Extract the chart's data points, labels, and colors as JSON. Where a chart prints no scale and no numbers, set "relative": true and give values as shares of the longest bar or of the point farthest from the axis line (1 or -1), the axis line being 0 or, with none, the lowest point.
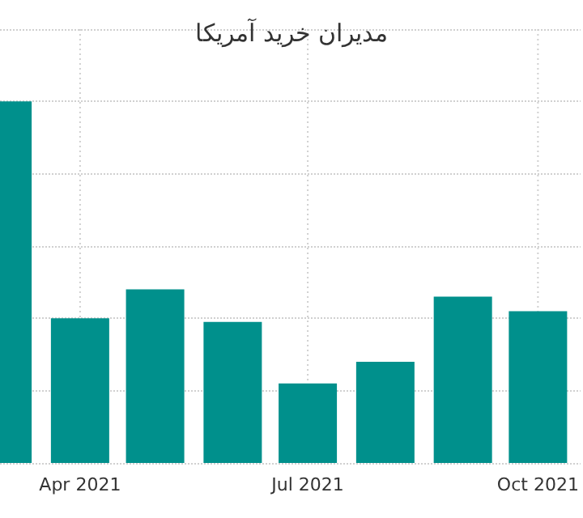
{
  "chart_data": {
    "type": "bar",
    "title": "مدیران خرید آمریکا",
    "relative": true,
    "x": [
      "2021-03-01",
      "2021-04-01",
      "2021-05-01",
      "2021-06-01",
      "2021-07-01",
      "2021-08-01",
      "2021-09-01",
      "2021-10-01"
    ],
    "values": [
      1,
      0.4,
      0.48,
      0.39,
      0.22,
      0.28,
      0.46,
      0.42
    ],
    "color": "#00908c",
    "xlim": [
      "2021-02-28",
      "2021-10-18"
    ],
    "xticks": [
      {
        "value": "2021-04-01",
        "label": "Apr 2021"
      },
      {
        "value": "2021-07-01",
        "label": "Jul 2021"
      },
      {
        "value": "2021-10-01",
        "label": "Oct 2021"
      }
    ],
    "grid": true
  }
}
